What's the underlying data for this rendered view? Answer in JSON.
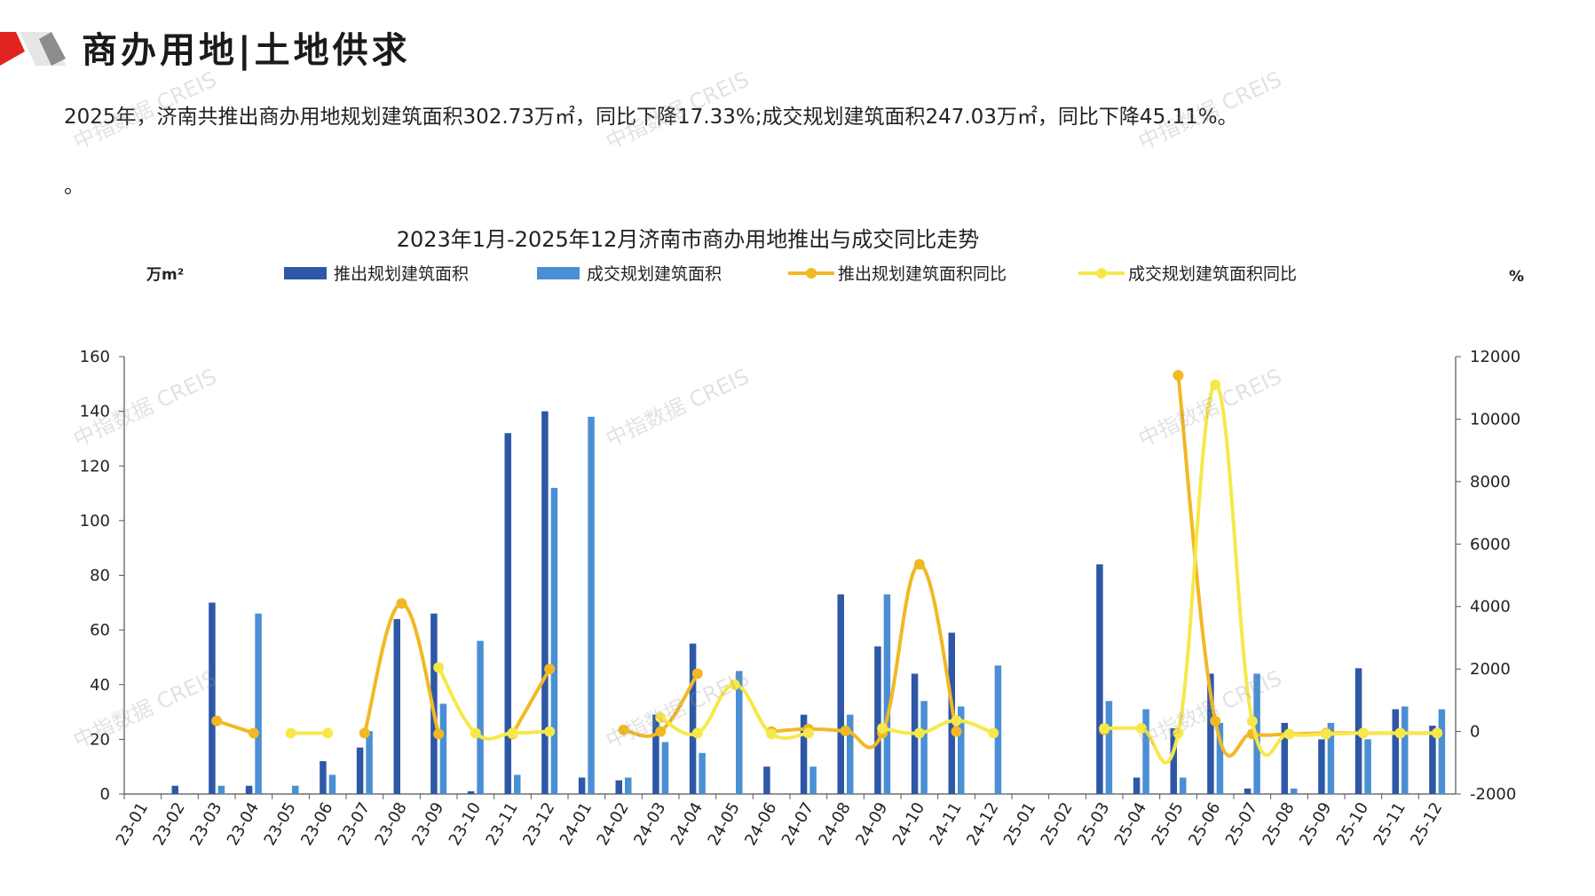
{
  "header": {
    "title": "商办用地|土地供求"
  },
  "summary": {
    "text": "2025年，济南共推出商办用地规划建筑面积302.73万㎡，同比下降17.33%;成交规划建筑面积247.03万㎡，同比下降45.11%。",
    "tail": "。"
  },
  "watermark": "中指数据 CREIS",
  "colors": {
    "supply_bar": "#2E58A6",
    "deal_bar": "#4A8FD3",
    "supply_yoy": "#F2B824",
    "deal_yoy": "#F7E84A",
    "brand_red": "#E0231E",
    "brand_gray": "#8C8C8C"
  },
  "chart_data": {
    "type": "bar",
    "title": "2023年1月-2025年12月济南市商办用地推出与成交同比走势",
    "y_left_label": "万m²",
    "y_right_label": "%",
    "y_left_range": [
      0,
      160
    ],
    "y_left_ticks": [
      "0",
      "20",
      "40",
      "60",
      "80",
      "100",
      "120",
      "140",
      "160"
    ],
    "y_right_range": [
      -2000,
      12000
    ],
    "y_right_ticks": [
      "-2000",
      "0",
      "2000",
      "4000",
      "6000",
      "8000",
      "10000",
      "12000"
    ],
    "legend_position": "top",
    "categories": [
      "23-01",
      "23-02",
      "23-03",
      "23-04",
      "23-05",
      "23-06",
      "23-07",
      "23-08",
      "23-09",
      "23-10",
      "23-11",
      "23-12",
      "24-01",
      "24-02",
      "24-03",
      "24-04",
      "24-05",
      "24-06",
      "24-07",
      "24-08",
      "24-09",
      "24-10",
      "24-11",
      "24-12",
      "25-01",
      "25-02",
      "25-03",
      "25-04",
      "25-05",
      "25-06",
      "25-07",
      "25-08",
      "25-09",
      "25-10",
      "25-11",
      "25-12"
    ],
    "series": [
      {
        "name": "推出规划建筑面积",
        "kind": "bar",
        "axis": "left",
        "values": [
          0,
          3,
          70,
          3,
          0,
          12,
          17,
          64,
          66,
          1,
          132,
          140,
          6,
          5,
          29,
          55,
          0,
          10,
          29,
          73,
          54,
          44,
          59,
          0,
          0,
          0,
          84,
          6,
          24,
          44,
          2,
          26,
          20,
          46,
          31,
          25
        ]
      },
      {
        "name": "成交规划建筑面积",
        "kind": "bar",
        "axis": "left",
        "values": [
          0,
          0,
          3,
          66,
          3,
          7,
          23,
          0,
          33,
          56,
          7,
          112,
          138,
          6,
          19,
          15,
          45,
          0,
          10,
          29,
          73,
          34,
          32,
          47,
          0,
          0,
          34,
          31,
          6,
          26,
          44,
          2,
          26,
          20,
          32,
          31
        ]
      },
      {
        "name": "推出规划建筑面积同比",
        "kind": "line",
        "axis": "right",
        "values": [
          null,
          null,
          340,
          -50,
          null,
          null,
          -50,
          4100,
          -80,
          null,
          -80,
          2000,
          null,
          50,
          0,
          1850,
          null,
          0,
          80,
          20,
          -50,
          5350,
          0,
          null,
          null,
          null,
          50,
          null,
          11400,
          340,
          -80,
          -80,
          -50,
          -50,
          -50,
          -50
        ]
      },
      {
        "name": "成交规划建筑面积同比",
        "kind": "line",
        "axis": "right",
        "values": [
          null,
          null,
          null,
          null,
          -50,
          -50,
          null,
          null,
          2050,
          -50,
          -50,
          0,
          null,
          null,
          450,
          -50,
          1500,
          -80,
          -50,
          null,
          100,
          -50,
          350,
          -50,
          null,
          null,
          100,
          100,
          -50,
          11100,
          330,
          -80,
          -80,
          -50,
          -50,
          -50
        ]
      }
    ]
  }
}
